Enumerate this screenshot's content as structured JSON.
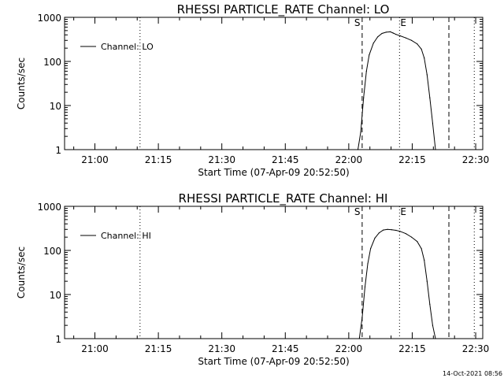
{
  "chart_data": [
    {
      "type": "line",
      "title": "RHESSI PARTICLE_RATE Channel: LO",
      "xlabel": "Start Time (07-Apr-09 20:52:50)",
      "ylabel": "Counts/sec",
      "yscale": "log",
      "xlim": [
        "20:52:50",
        "22:31:40"
      ],
      "ylim": [
        1,
        1000
      ],
      "x_ticks": [
        "21:00",
        "21:15",
        "21:30",
        "21:45",
        "22:00",
        "22:15",
        "22:30"
      ],
      "y_ticks": [
        "1",
        "10",
        "100",
        "1000"
      ],
      "legend": {
        "position": "top-left",
        "label": "Channel: LO"
      },
      "markers": [
        {
          "time": "21:10:40",
          "style": "dotted",
          "label": ""
        },
        {
          "time": "22:03:10",
          "style": "dashed",
          "label": "S"
        },
        {
          "time": "22:12:00",
          "style": "dotted",
          "label": "E"
        },
        {
          "time": "22:23:40",
          "style": "dashed",
          "label": ""
        },
        {
          "time": "22:29:40",
          "style": "dotted",
          "label": ""
        }
      ],
      "series": [
        {
          "name": "Channel: LO",
          "x": [
            "22:02:10",
            "22:02:50",
            "22:03:30",
            "22:04:10",
            "22:04:50",
            "22:05:50",
            "22:06:50",
            "22:07:50",
            "22:08:50",
            "22:09:50",
            "22:10:30",
            "22:11:10",
            "22:12:10",
            "22:13:30",
            "22:14:50",
            "22:16:10",
            "22:17:10",
            "22:17:50",
            "22:18:30",
            "22:19:10",
            "22:19:50",
            "22:20:30"
          ],
          "values": [
            1.0,
            2.5,
            15,
            60,
            140,
            260,
            360,
            430,
            460,
            470,
            440,
            410,
            380,
            340,
            300,
            250,
            190,
            120,
            50,
            15,
            4,
            1.0
          ]
        }
      ]
    },
    {
      "type": "line",
      "title": "RHESSI PARTICLE_RATE Channel: HI",
      "xlabel": "Start Time (07-Apr-09 20:52:50)",
      "ylabel": "Counts/sec",
      "yscale": "log",
      "xlim": [
        "20:52:50",
        "22:31:40"
      ],
      "ylim": [
        1,
        1000
      ],
      "x_ticks": [
        "21:00",
        "21:15",
        "21:30",
        "21:45",
        "22:00",
        "22:15",
        "22:30"
      ],
      "y_ticks": [
        "1",
        "10",
        "100",
        "1000"
      ],
      "legend": {
        "position": "top-left",
        "label": "Channel: HI"
      },
      "markers": [
        {
          "time": "21:10:40",
          "style": "dotted",
          "label": ""
        },
        {
          "time": "22:03:10",
          "style": "dashed",
          "label": "S"
        },
        {
          "time": "22:12:00",
          "style": "dotted",
          "label": "E"
        },
        {
          "time": "22:23:40",
          "style": "dashed",
          "label": ""
        },
        {
          "time": "22:29:40",
          "style": "dotted",
          "label": ""
        }
      ],
      "series": [
        {
          "name": "Channel: HI",
          "x": [
            "22:02:30",
            "22:03:10",
            "22:03:50",
            "22:04:30",
            "22:05:10",
            "22:06:10",
            "22:07:10",
            "22:08:10",
            "22:09:10",
            "22:10:10",
            "22:11:10",
            "22:12:10",
            "22:13:30",
            "22:14:50",
            "22:16:10",
            "22:17:10",
            "22:17:50",
            "22:18:30",
            "22:19:10",
            "22:19:50",
            "22:20:30"
          ],
          "values": [
            1.0,
            3,
            15,
            50,
            110,
            190,
            250,
            290,
            300,
            295,
            285,
            270,
            240,
            200,
            160,
            110,
            60,
            20,
            6,
            2,
            1.0
          ]
        }
      ]
    }
  ],
  "timestamp": "14-Oct-2021 08:56"
}
